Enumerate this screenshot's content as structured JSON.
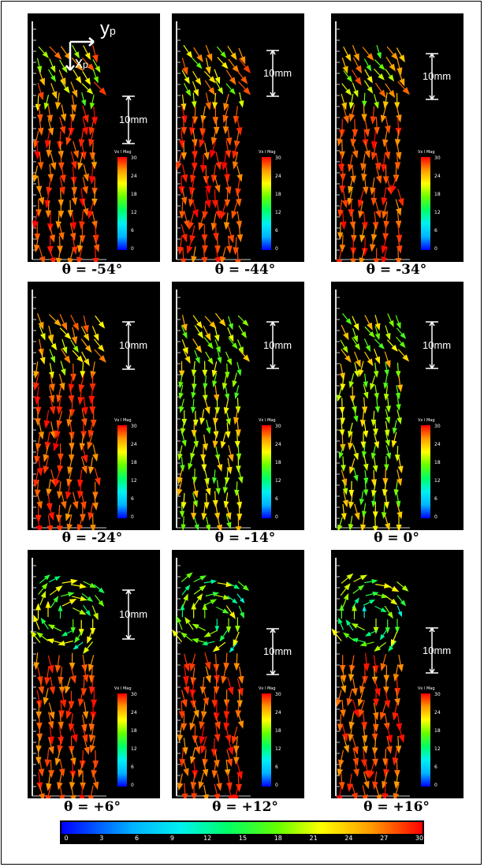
{
  "panels": [
    {
      "caption": "θ = -54°",
      "scale": "10mm",
      "colorbar_title": "Vx l Mag"
    },
    {
      "caption": "θ = -44°",
      "scale": "10mm",
      "colorbar_title": "Vx l Mag"
    },
    {
      "caption": "θ = -34°",
      "scale": "10mm",
      "colorbar_title": "Vx l Mag"
    },
    {
      "caption": "θ = -24°",
      "scale": "10mm",
      "colorbar_title": "Vx l Mag"
    },
    {
      "caption": "θ = -14°",
      "scale": "10mm",
      "colorbar_title": "Vx l Mag"
    },
    {
      "caption": "θ = 0°",
      "scale": "10mm",
      "colorbar_title": "Vx l Mag"
    },
    {
      "caption": "θ = +6°",
      "scale": "10mm",
      "colorbar_title": "Vx l Mag"
    },
    {
      "caption": "θ = +12°",
      "scale": "10mm",
      "colorbar_title": "Vx l Mag"
    },
    {
      "caption": "θ = +16°",
      "scale": "10mm",
      "colorbar_title": "Vx l Mag"
    }
  ],
  "colorbar_ticks": [
    "30",
    "24",
    "18",
    "12",
    "6",
    "0"
  ],
  "global_colorbar": {
    "ticks": [
      "0",
      "3",
      "6",
      "9",
      "12",
      "15",
      "18",
      "21",
      "24",
      "27",
      "30"
    ],
    "colors": [
      "#0000ff",
      "#00b4ff",
      "#00f0f0",
      "#00ff66",
      "#66ff00",
      "#ffff00",
      "#ff9900",
      "#ff0000"
    ]
  },
  "axes": {
    "y_label": "y",
    "y_sub": "p",
    "x_label": "x",
    "x_sub": "p"
  }
}
